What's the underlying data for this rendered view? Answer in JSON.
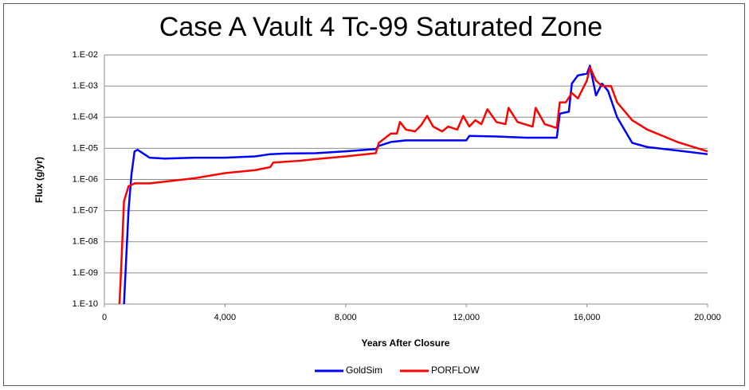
{
  "chart_data": {
    "type": "line",
    "title": "Case A Vault 4 Tc-99 Saturated Zone",
    "x_label": "Years After Closure",
    "y_label": "Flux (g/yr)",
    "log_y": true,
    "grid": true,
    "legend": "bottom",
    "xlim": [
      0,
      20000
    ],
    "xticks": [
      0,
      {
        "value": 4000,
        "label": "4,000"
      },
      {
        "value": 8000,
        "label": "8,000"
      },
      {
        "value": 12000,
        "label": "12,000"
      },
      {
        "value": 16000,
        "label": "16,000"
      },
      {
        "value": 20000,
        "label": "20,000"
      }
    ],
    "ylim": [
      1e-10,
      0.01
    ],
    "yticks": [
      {
        "value": 1e-10,
        "label": "1.E-10"
      },
      {
        "value": 1e-09,
        "label": "1.E-09"
      },
      {
        "value": 1e-08,
        "label": "1.E-08"
      },
      {
        "value": 1e-07,
        "label": "1.E-07"
      },
      {
        "value": 1e-06,
        "label": "1.E-06"
      },
      {
        "value": 1e-05,
        "label": "1.E-05"
      },
      {
        "value": 0.0001,
        "label": "1.E-04"
      },
      {
        "value": 0.001,
        "label": "1.E-03"
      },
      {
        "value": 0.01,
        "label": "1.E-02"
      }
    ],
    "series": [
      {
        "name": "GoldSim",
        "color": "#0000ff",
        "x": [
          600,
          700,
          800,
          900,
          1000,
          1100,
          1500,
          2000,
          3000,
          4000,
          5000,
          5500,
          6000,
          7000,
          8000,
          9000,
          9100,
          9500,
          10000,
          11000,
          12000,
          12100,
          13000,
          14000,
          15000,
          15100,
          15400,
          15500,
          15700,
          16000,
          16100,
          16300,
          16500,
          16700,
          17000,
          17500,
          18000,
          19000,
          20000
        ],
        "values": [
          1e-11,
          1e-09,
          1e-07,
          1.5e-06,
          8e-06,
          9e-06,
          5e-06,
          4.7e-06,
          5e-06,
          5e-06,
          5.5e-06,
          6.5e-06,
          6.8e-06,
          7e-06,
          8e-06,
          9.5e-06,
          1.2e-05,
          1.6e-05,
          1.8e-05,
          1.8e-05,
          1.8e-05,
          2.5e-05,
          2.4e-05,
          2.2e-05,
          2.2e-05,
          0.00013,
          0.00015,
          0.0012,
          0.0022,
          0.0025,
          0.0045,
          0.0005,
          0.0012,
          0.0007,
          0.0001,
          1.5e-05,
          1.1e-05,
          8.5e-06,
          6.5e-06
        ]
      },
      {
        "name": "PORFLOW",
        "color": "#ff0000",
        "x": [
          450,
          550,
          650,
          800,
          1000,
          1500,
          2000,
          3000,
          4000,
          5000,
          5500,
          5600,
          6500,
          7000,
          8000,
          9000,
          9100,
          9500,
          9700,
          9800,
          10000,
          10300,
          10500,
          10700,
          10900,
          11200,
          11400,
          11700,
          11900,
          12100,
          12300,
          12500,
          12700,
          13000,
          13300,
          13400,
          13700,
          14200,
          14300,
          14600,
          15000,
          15100,
          15300,
          15500,
          15700,
          16000,
          16100,
          16300,
          16500,
          16800,
          17000,
          17500,
          18000,
          19000,
          20000
        ],
        "values": [
          1e-11,
          1e-09,
          2e-07,
          6e-07,
          7.5e-07,
          7.5e-07,
          8.5e-07,
          1.1e-06,
          1.6e-06,
          2e-06,
          2.5e-06,
          3.5e-06,
          4e-06,
          4.5e-06,
          5.5e-06,
          7e-06,
          1.5e-05,
          3e-05,
          3e-05,
          7e-05,
          4e-05,
          3.5e-05,
          5.5e-05,
          0.00011,
          5e-05,
          3.5e-05,
          5e-05,
          4e-05,
          0.00011,
          5e-05,
          8e-05,
          6e-05,
          0.00018,
          7e-05,
          6e-05,
          0.0002,
          7e-05,
          5e-05,
          0.0002,
          6e-05,
          4.5e-05,
          0.0003,
          0.0003,
          0.0006,
          0.0004,
          0.0015,
          0.004,
          0.0015,
          0.001,
          0.001,
          0.0003,
          8e-05,
          4e-05,
          1.6e-05,
          8e-06
        ]
      }
    ]
  }
}
